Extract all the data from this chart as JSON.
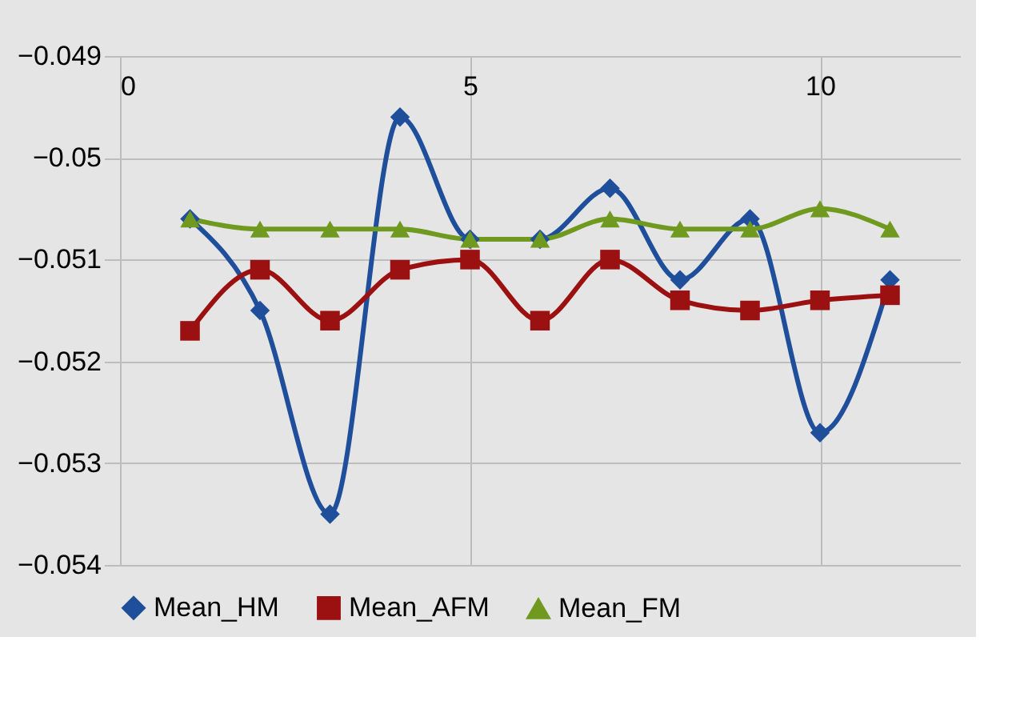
{
  "chart_data": {
    "type": "line",
    "x": [
      1,
      2,
      3,
      4,
      5,
      6,
      7,
      8,
      9,
      10,
      11
    ],
    "series": [
      {
        "name": "Mean_HM",
        "color": "#1f4e9a",
        "marker": "diamond",
        "values": [
          -0.0506,
          -0.0515,
          -0.0535,
          -0.0496,
          -0.0508,
          -0.0508,
          -0.0503,
          -0.0512,
          -0.0506,
          -0.0527,
          -0.0512
        ]
      },
      {
        "name": "Mean_AFM",
        "color": "#9b1010",
        "marker": "square",
        "values": [
          -0.0517,
          -0.0511,
          -0.0516,
          -0.0511,
          -0.051,
          -0.0516,
          -0.051,
          -0.0514,
          -0.0515,
          -0.0514,
          -0.05135
        ]
      },
      {
        "name": "Mean_FM",
        "color": "#6f9a1f",
        "marker": "triangle",
        "values": [
          -0.0506,
          -0.0507,
          -0.0507,
          -0.0507,
          -0.0508,
          -0.0508,
          -0.0506,
          -0.0507,
          -0.0507,
          -0.0505,
          -0.0507
        ]
      }
    ],
    "xlim": [
      0,
      12
    ],
    "xticks": [
      0,
      5,
      10
    ],
    "ylim": [
      -0.054,
      -0.049
    ],
    "yticks": [
      -0.054,
      -0.053,
      -0.052,
      -0.051,
      -0.05,
      -0.049
    ],
    "grid": true,
    "legend": "bottom",
    "line_style": "solid"
  }
}
